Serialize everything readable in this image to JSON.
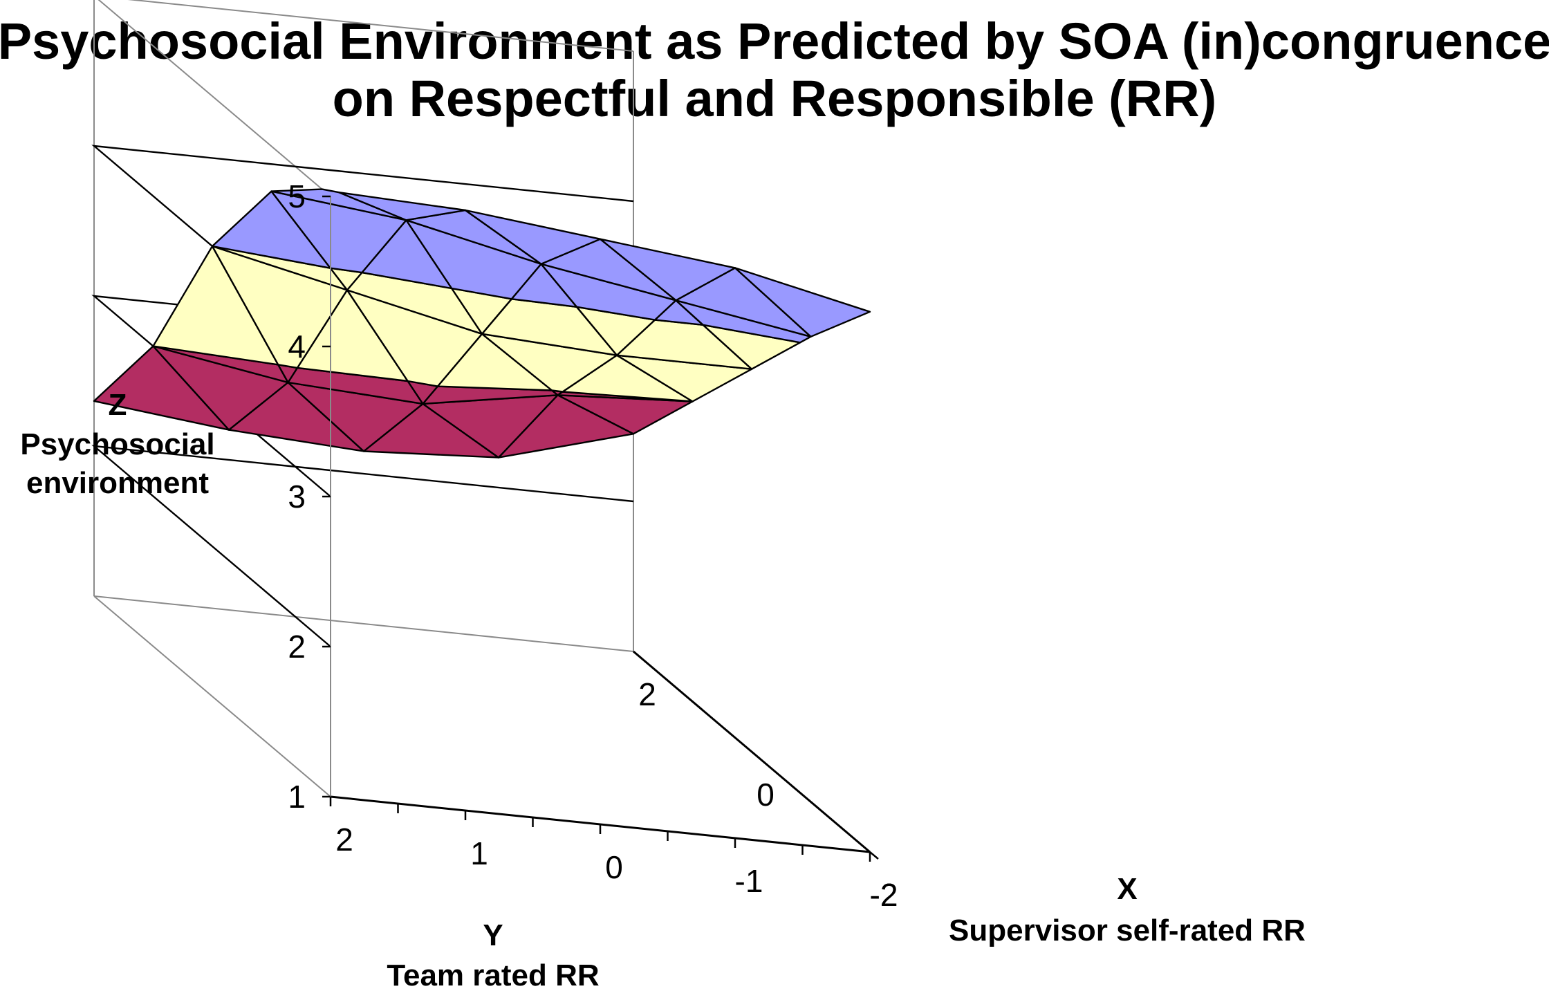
{
  "chart_data": {
    "type": "surface",
    "title": [
      "Psychosocial Environment as Predicted by SOA (in)congruence",
      "on Respectful and Responsible (RR)"
    ],
    "zlabel": [
      "Z",
      "Psychosocial",
      "environment"
    ],
    "ylabel": [
      "Y",
      "Team rated RR"
    ],
    "xlabel": [
      "X",
      "Supervisor self-rated RR"
    ],
    "zlim": [
      1,
      5
    ],
    "z_ticks": [
      "1",
      "2",
      "3",
      "4",
      "5"
    ],
    "y_ticks": [
      "2",
      "1",
      "0",
      "-1",
      "-2"
    ],
    "x_ticks": [
      "-2",
      "0",
      "2"
    ],
    "x_values": [
      -2,
      -1,
      0,
      1,
      2
    ],
    "y_values": [
      2,
      1,
      0,
      -1,
      -2
    ],
    "z_values": [
      [
        5.05,
        4.7,
        4.0,
        3.0,
        2.3
      ],
      [
        5.0,
        4.6,
        3.8,
        2.85,
        2.2
      ],
      [
        4.9,
        4.4,
        3.6,
        2.8,
        2.15
      ],
      [
        4.8,
        4.25,
        3.55,
        2.95,
        2.2
      ],
      [
        4.6,
        4.1,
        3.55,
        3.0,
        2.45
      ]
    ],
    "color_bands": [
      {
        "range": "2-3",
        "color": "#b32d62"
      },
      {
        "range": "3-4",
        "color": "#ffffc2"
      },
      {
        "range": "4-5",
        "color": "#9999ff"
      }
    ]
  }
}
